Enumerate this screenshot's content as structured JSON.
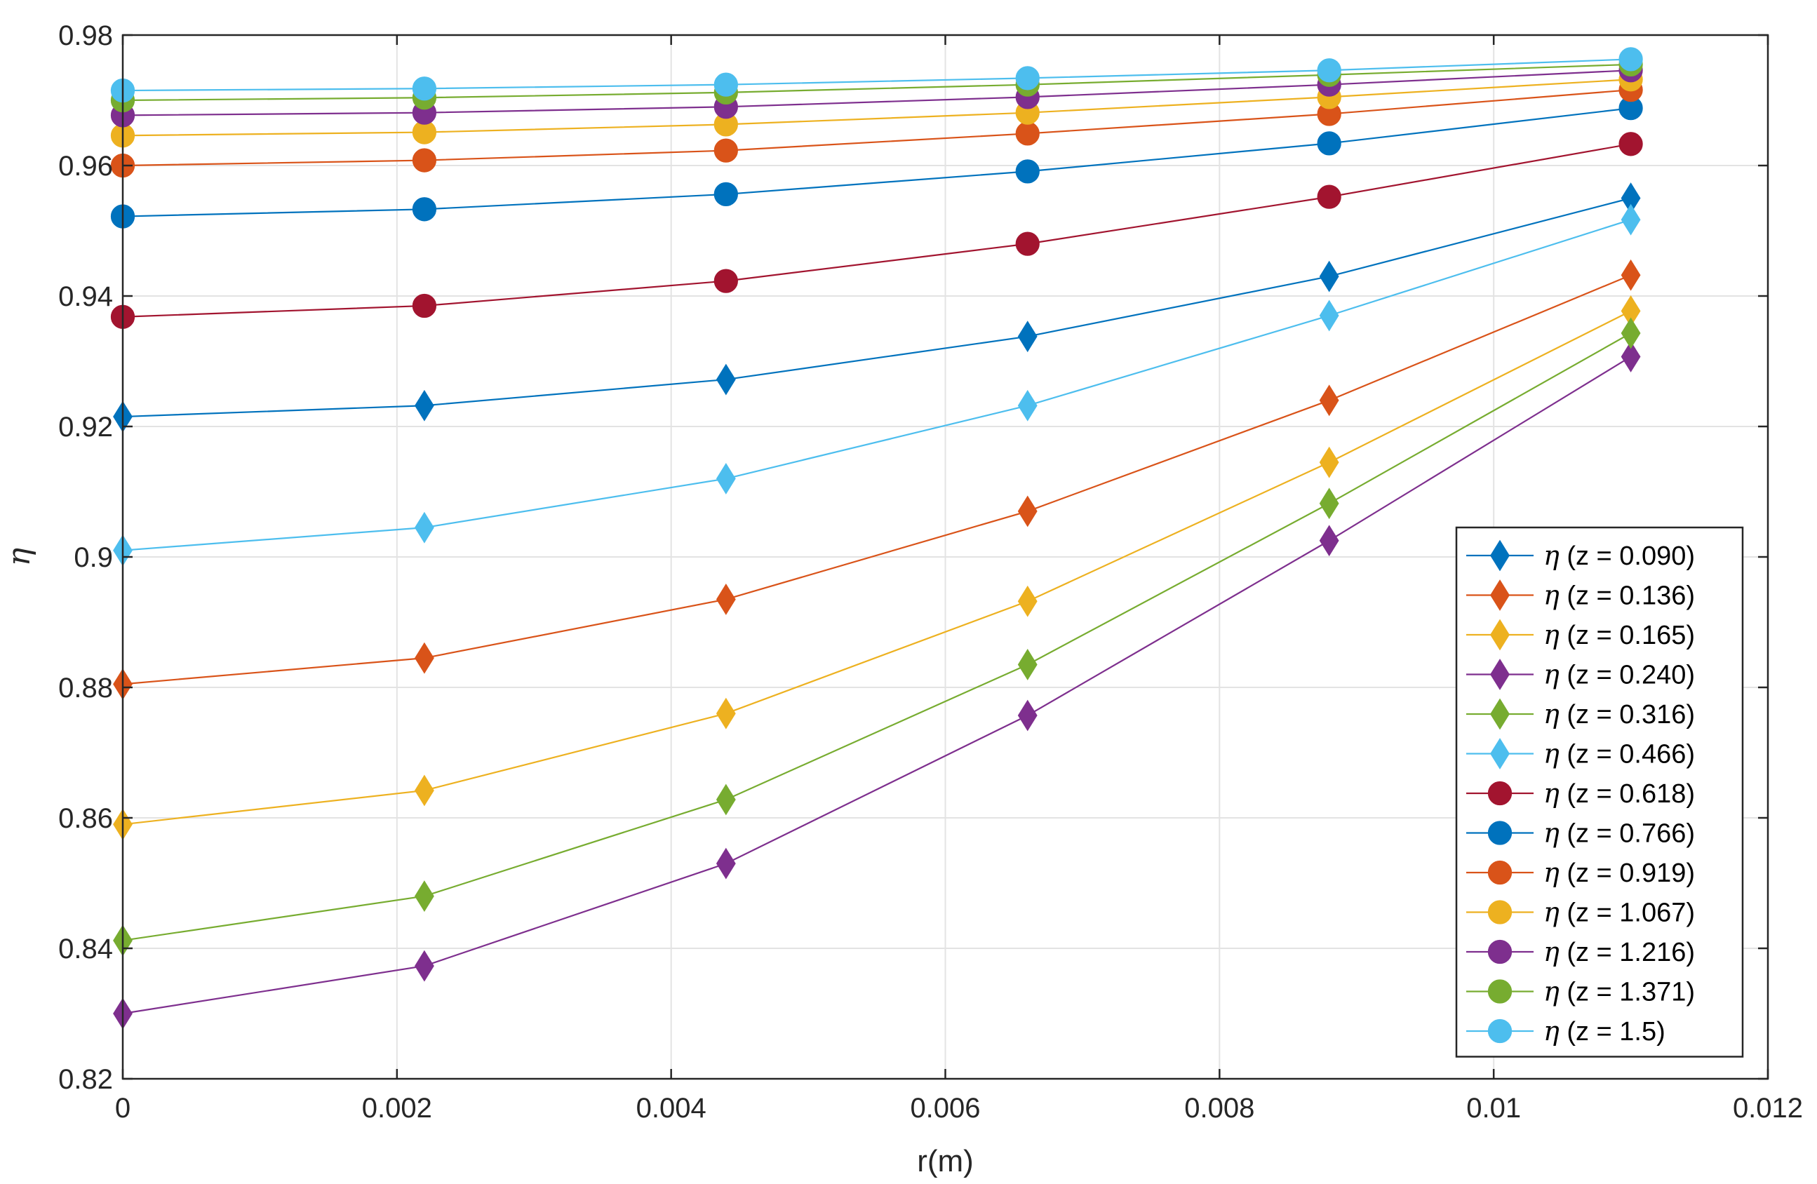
{
  "chart_data": {
    "type": "line",
    "title": "",
    "xlabel": "r(m)",
    "ylabel": "η",
    "xlim": [
      0,
      0.012
    ],
    "ylim": [
      0.82,
      0.98
    ],
    "grid": true,
    "legend_position": "right-middle",
    "x_ticks": [
      "0",
      "0.002",
      "0.004",
      "0.006",
      "0.008",
      "0.01",
      "0.012"
    ],
    "y_ticks": [
      "0.82",
      "0.84",
      "0.86",
      "0.88",
      "0.9",
      "0.92",
      "0.94",
      "0.96",
      "0.98"
    ],
    "x": [
      0,
      0.0022,
      0.0044,
      0.0066,
      0.0088,
      0.011
    ],
    "series": [
      {
        "name": "(z = 0.090)",
        "symbol": "η",
        "marker": "diamond",
        "color": "#0072BD",
        "values": [
          0.9215,
          0.9232,
          0.9272,
          0.9338,
          0.943,
          0.955
        ]
      },
      {
        "name": "(z = 0.136)",
        "symbol": "η",
        "marker": "diamond",
        "color": "#D95319",
        "values": [
          0.8805,
          0.8845,
          0.8935,
          0.907,
          0.924,
          0.9432
        ]
      },
      {
        "name": "(z = 0.165)",
        "symbol": "η",
        "marker": "diamond",
        "color": "#EDB120",
        "values": [
          0.859,
          0.8642,
          0.876,
          0.8932,
          0.9145,
          0.9377
        ]
      },
      {
        "name": "(z = 0.240)",
        "symbol": "η",
        "marker": "diamond",
        "color": "#7E2F8E",
        "values": [
          0.83,
          0.8373,
          0.853,
          0.8757,
          0.9025,
          0.9307
        ]
      },
      {
        "name": "(z = 0.316)",
        "symbol": "η",
        "marker": "diamond",
        "color": "#77AC30",
        "values": [
          0.8412,
          0.848,
          0.8628,
          0.8835,
          0.9082,
          0.9343
        ]
      },
      {
        "name": "(z = 0.466)",
        "symbol": "η",
        "marker": "diamond",
        "color": "#4DBEEE",
        "values": [
          0.901,
          0.9045,
          0.912,
          0.9232,
          0.937,
          0.9517
        ]
      },
      {
        "name": "(z = 0.618)",
        "symbol": "η",
        "marker": "circle",
        "color": "#A2142F",
        "values": [
          0.9368,
          0.9385,
          0.9423,
          0.948,
          0.9552,
          0.9633
        ]
      },
      {
        "name": "(z = 0.766)",
        "symbol": "η",
        "marker": "circle",
        "color": "#0072BD",
        "values": [
          0.9522,
          0.9533,
          0.9556,
          0.9591,
          0.9634,
          0.9688
        ]
      },
      {
        "name": "(z = 0.919)",
        "symbol": "η",
        "marker": "circle",
        "color": "#D95319",
        "values": [
          0.96,
          0.9608,
          0.9623,
          0.9649,
          0.9679,
          0.9716
        ]
      },
      {
        "name": "(z = 1.067)",
        "symbol": "η",
        "marker": "circle",
        "color": "#EDB120",
        "values": [
          0.9646,
          0.9651,
          0.9663,
          0.9681,
          0.9705,
          0.9732
        ]
      },
      {
        "name": "(z = 1.216)",
        "symbol": "η",
        "marker": "circle",
        "color": "#7E2F8E",
        "values": [
          0.9677,
          0.9681,
          0.969,
          0.9705,
          0.9724,
          0.9746
        ]
      },
      {
        "name": "(z = 1.371)",
        "symbol": "η",
        "marker": "circle",
        "color": "#77AC30",
        "values": [
          0.97,
          0.9704,
          0.9712,
          0.9724,
          0.9739,
          0.9755
        ]
      },
      {
        "name": "(z = 1.5)",
        "symbol": "η",
        "marker": "circle",
        "color": "#4DBEEE",
        "values": [
          0.9715,
          0.9718,
          0.9724,
          0.9734,
          0.9746,
          0.9763
        ]
      }
    ]
  }
}
